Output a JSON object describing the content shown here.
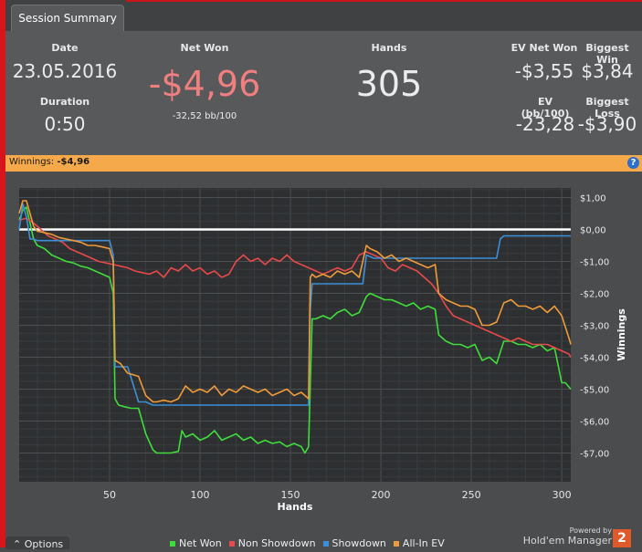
{
  "tab": {
    "label": "Session Summary"
  },
  "summary": {
    "date_label": "Date",
    "date_value": "23.05.2016",
    "duration_label": "Duration",
    "duration_value": "0:50",
    "netwon_label": "Net Won",
    "netwon_value": "-$4,96",
    "netwon_sub": "-32,52 bb/100",
    "hands_label": "Hands",
    "hands_value": "305",
    "evnet_label": "EV Net Won",
    "evnet_value": "-$3,55",
    "biggestwin_label": "Biggest Win",
    "biggestwin_value": "$3,84",
    "evbb_label": "EV (bb/100)",
    "evbb_value": "-23,28",
    "biggestloss_label": "Biggest Loss",
    "biggestloss_value": "-$3,90"
  },
  "banner": {
    "label": "Winnings:",
    "value": "-$4,96",
    "help": "?"
  },
  "colors": {
    "net_won": "#3fdd3a",
    "non_showdown": "#e8494a",
    "showdown": "#3d8fd8",
    "all_in_ev": "#f09a3a",
    "netwon_text": "#f07f7f",
    "banner": "#f5a94a"
  },
  "footer": {
    "options_label": "Options",
    "powered_by": "Powered by",
    "brand": "Hold'em Manager",
    "brand_num": "2"
  },
  "chart_data": {
    "type": "line",
    "xlabel": "Hands",
    "ylabel": "Winnings",
    "xlim": [
      0,
      305
    ],
    "ylim": [
      -7.9,
      1.3
    ],
    "x_ticks": [
      50,
      100,
      150,
      200,
      250,
      300
    ],
    "x_tick_labels": [
      "50",
      "100",
      "150",
      "200",
      "250",
      "300"
    ],
    "y_ticks": [
      1,
      0,
      -1,
      -2,
      -3,
      -4,
      -5,
      -6,
      -7
    ],
    "y_tick_labels": [
      "$1,00",
      "$0,00",
      "-$1,00",
      "-$2,00",
      "-$3,00",
      "-$4,00",
      "-$5,00",
      "-$6,00",
      "-$7,00"
    ],
    "zero_line": 0,
    "legend": [
      "Net Won",
      "Non Showdown",
      "Showdown",
      "All-In EV"
    ],
    "series": [
      {
        "name": "Net Won",
        "color": "#3fdd3a",
        "x": [
          0,
          2,
          4,
          8,
          10,
          14,
          18,
          22,
          26,
          30,
          34,
          38,
          42,
          46,
          50,
          52,
          53,
          55,
          58,
          62,
          66,
          70,
          74,
          76,
          80,
          84,
          88,
          90,
          92,
          96,
          100,
          104,
          108,
          112,
          116,
          120,
          124,
          128,
          132,
          136,
          140,
          144,
          148,
          152,
          156,
          158,
          160,
          162,
          164,
          168,
          172,
          176,
          180,
          184,
          188,
          192,
          194,
          198,
          202,
          206,
          210,
          214,
          218,
          222,
          226,
          230,
          232,
          236,
          240,
          244,
          248,
          252,
          256,
          260,
          264,
          268,
          272,
          276,
          280,
          284,
          288,
          292,
          296,
          300,
          302,
          305
        ],
        "y": [
          0.3,
          0.6,
          0.7,
          -0.3,
          -0.5,
          -0.6,
          -0.8,
          -0.9,
          -1.0,
          -1.05,
          -1.15,
          -1.2,
          -1.3,
          -1.4,
          -1.5,
          -2.0,
          -5.3,
          -5.5,
          -5.55,
          -5.6,
          -5.6,
          -6.4,
          -6.9,
          -7.0,
          -7.0,
          -7.0,
          -6.95,
          -6.3,
          -6.5,
          -6.4,
          -6.6,
          -6.5,
          -6.3,
          -6.6,
          -6.5,
          -6.4,
          -6.6,
          -6.5,
          -6.7,
          -6.6,
          -6.7,
          -6.65,
          -6.8,
          -6.7,
          -6.8,
          -7.0,
          -6.8,
          -2.8,
          -2.8,
          -2.7,
          -2.8,
          -2.6,
          -2.5,
          -2.7,
          -2.6,
          -2.1,
          -2.0,
          -2.1,
          -2.2,
          -2.2,
          -2.3,
          -2.4,
          -2.3,
          -2.5,
          -2.4,
          -2.5,
          -3.3,
          -3.5,
          -3.6,
          -3.6,
          -3.7,
          -3.6,
          -4.1,
          -4.0,
          -4.2,
          -3.5,
          -3.5,
          -3.6,
          -3.6,
          -3.7,
          -3.6,
          -3.8,
          -3.7,
          -4.8,
          -4.8,
          -5.0
        ]
      },
      {
        "name": "Non Showdown",
        "color": "#e8494a",
        "x": [
          0,
          4,
          8,
          12,
          16,
          20,
          24,
          28,
          32,
          36,
          40,
          44,
          48,
          52,
          56,
          60,
          64,
          68,
          72,
          76,
          80,
          84,
          88,
          92,
          96,
          100,
          104,
          108,
          112,
          116,
          120,
          124,
          128,
          132,
          136,
          140,
          144,
          148,
          152,
          156,
          160,
          164,
          168,
          172,
          176,
          180,
          184,
          188,
          192,
          196,
          200,
          204,
          208,
          212,
          216,
          220,
          224,
          228,
          232,
          236,
          240,
          244,
          248,
          252,
          256,
          260,
          264,
          268,
          272,
          276,
          280,
          284,
          288,
          292,
          296,
          300,
          304,
          305
        ],
        "y": [
          0.3,
          0.35,
          0.2,
          0.0,
          -0.2,
          -0.3,
          -0.4,
          -0.6,
          -0.7,
          -0.8,
          -0.9,
          -1.0,
          -1.05,
          -1.1,
          -1.15,
          -1.2,
          -1.3,
          -1.35,
          -1.4,
          -1.3,
          -1.5,
          -1.2,
          -1.3,
          -1.1,
          -1.3,
          -1.2,
          -1.4,
          -1.3,
          -1.5,
          -1.4,
          -1.0,
          -0.8,
          -1.0,
          -0.9,
          -1.1,
          -0.9,
          -1.0,
          -0.8,
          -1.0,
          -1.1,
          -1.2,
          -1.3,
          -1.4,
          -1.3,
          -1.2,
          -1.3,
          -1.2,
          -0.8,
          -0.7,
          -0.8,
          -0.9,
          -1.2,
          -1.3,
          -1.1,
          -1.2,
          -1.3,
          -1.5,
          -1.7,
          -2.0,
          -2.4,
          -2.7,
          -2.8,
          -2.9,
          -3.0,
          -3.1,
          -3.2,
          -3.3,
          -3.4,
          -3.5,
          -3.4,
          -3.5,
          -3.6,
          -3.6,
          -3.6,
          -3.7,
          -3.8,
          -3.9,
          -4.0
        ]
      },
      {
        "name": "Showdown",
        "color": "#3d8fd8",
        "x": [
          0,
          2,
          4,
          6,
          8,
          10,
          14,
          18,
          22,
          26,
          30,
          34,
          38,
          42,
          46,
          50,
          52,
          53,
          56,
          60,
          66,
          70,
          74,
          76,
          80,
          100,
          120,
          140,
          160,
          161,
          162,
          164,
          170,
          180,
          188,
          190,
          192,
          196,
          200,
          210,
          220,
          230,
          232,
          240,
          250,
          260,
          264,
          266,
          268,
          270,
          280,
          290,
          300,
          305
        ],
        "y": [
          0.0,
          0.8,
          0.4,
          -0.3,
          -0.3,
          -0.35,
          -0.35,
          -0.35,
          -0.35,
          -0.35,
          -0.35,
          -0.35,
          -0.35,
          -0.35,
          -0.35,
          -0.35,
          -0.8,
          -4.3,
          -4.3,
          -4.3,
          -5.4,
          -5.4,
          -5.5,
          -5.5,
          -5.5,
          -5.5,
          -5.5,
          -5.5,
          -5.5,
          -2.5,
          -1.7,
          -1.7,
          -1.7,
          -1.7,
          -1.7,
          -1.7,
          -0.8,
          -0.9,
          -0.9,
          -0.9,
          -0.9,
          -0.9,
          -0.9,
          -0.9,
          -0.9,
          -0.9,
          -0.9,
          -0.3,
          -0.2,
          -0.2,
          -0.2,
          -0.2,
          -0.2,
          -0.2
        ]
      },
      {
        "name": "All-In EV",
        "color": "#f09a3a",
        "x": [
          0,
          2,
          4,
          8,
          10,
          14,
          18,
          22,
          26,
          30,
          34,
          38,
          42,
          46,
          50,
          52,
          53,
          56,
          60,
          66,
          70,
          74,
          76,
          80,
          84,
          88,
          92,
          96,
          100,
          104,
          108,
          112,
          116,
          120,
          124,
          128,
          132,
          136,
          140,
          144,
          148,
          152,
          156,
          160,
          161,
          162,
          164,
          168,
          172,
          176,
          180,
          184,
          188,
          192,
          194,
          198,
          202,
          206,
          210,
          214,
          218,
          222,
          226,
          230,
          232,
          236,
          240,
          244,
          248,
          252,
          256,
          260,
          264,
          268,
          272,
          276,
          280,
          284,
          288,
          292,
          296,
          300,
          304,
          305
        ],
        "y": [
          0.5,
          0.9,
          0.9,
          0.1,
          -0.05,
          -0.1,
          -0.15,
          -0.25,
          -0.3,
          -0.35,
          -0.4,
          -0.5,
          -0.5,
          -0.55,
          -0.6,
          -1.0,
          -4.1,
          -4.2,
          -4.5,
          -4.6,
          -5.2,
          -5.4,
          -5.4,
          -5.35,
          -5.4,
          -5.3,
          -4.9,
          -5.1,
          -5.0,
          -5.1,
          -4.9,
          -5.2,
          -5.0,
          -5.1,
          -4.9,
          -5.0,
          -5.1,
          -5.0,
          -5.2,
          -5.1,
          -5.0,
          -5.2,
          -5.1,
          -5.3,
          -1.5,
          -1.4,
          -1.5,
          -1.4,
          -1.5,
          -1.3,
          -1.4,
          -1.3,
          -1.5,
          -0.5,
          -0.6,
          -0.7,
          -0.9,
          -0.8,
          -1.0,
          -0.9,
          -1.0,
          -1.1,
          -1.2,
          -1.1,
          -2.0,
          -2.2,
          -2.3,
          -2.4,
          -2.4,
          -2.5,
          -3.0,
          -3.0,
          -2.9,
          -2.3,
          -2.2,
          -2.4,
          -2.4,
          -2.5,
          -2.4,
          -2.6,
          -2.4,
          -2.7,
          -3.4,
          -3.6
        ]
      }
    ]
  }
}
